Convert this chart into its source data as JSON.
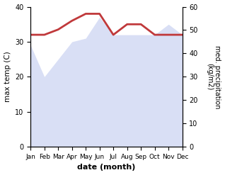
{
  "months": [
    "Jan",
    "Feb",
    "Mar",
    "Apr",
    "May",
    "Jun",
    "Jul",
    "Aug",
    "Sep",
    "Oct",
    "Nov",
    "Dec"
  ],
  "temp": [
    32,
    32,
    33.5,
    36,
    38,
    38,
    32,
    35,
    35,
    32,
    32,
    32
  ],
  "precip_left_scale": [
    29,
    20,
    25,
    30,
    31,
    37,
    32,
    32,
    32,
    32,
    35,
    32
  ],
  "temp_color": "#c0393b",
  "precip_color_fill": "#c5cef0",
  "temp_ylim": [
    0,
    40
  ],
  "precip_ylim": [
    0,
    60
  ],
  "xlabel": "date (month)",
  "ylabel_left": "max temp (C)",
  "ylabel_right": "med. precipitation\n(kg/m2)",
  "bg_color": "#ffffff",
  "temp_linewidth": 2.0,
  "precip_alpha": 0.65
}
